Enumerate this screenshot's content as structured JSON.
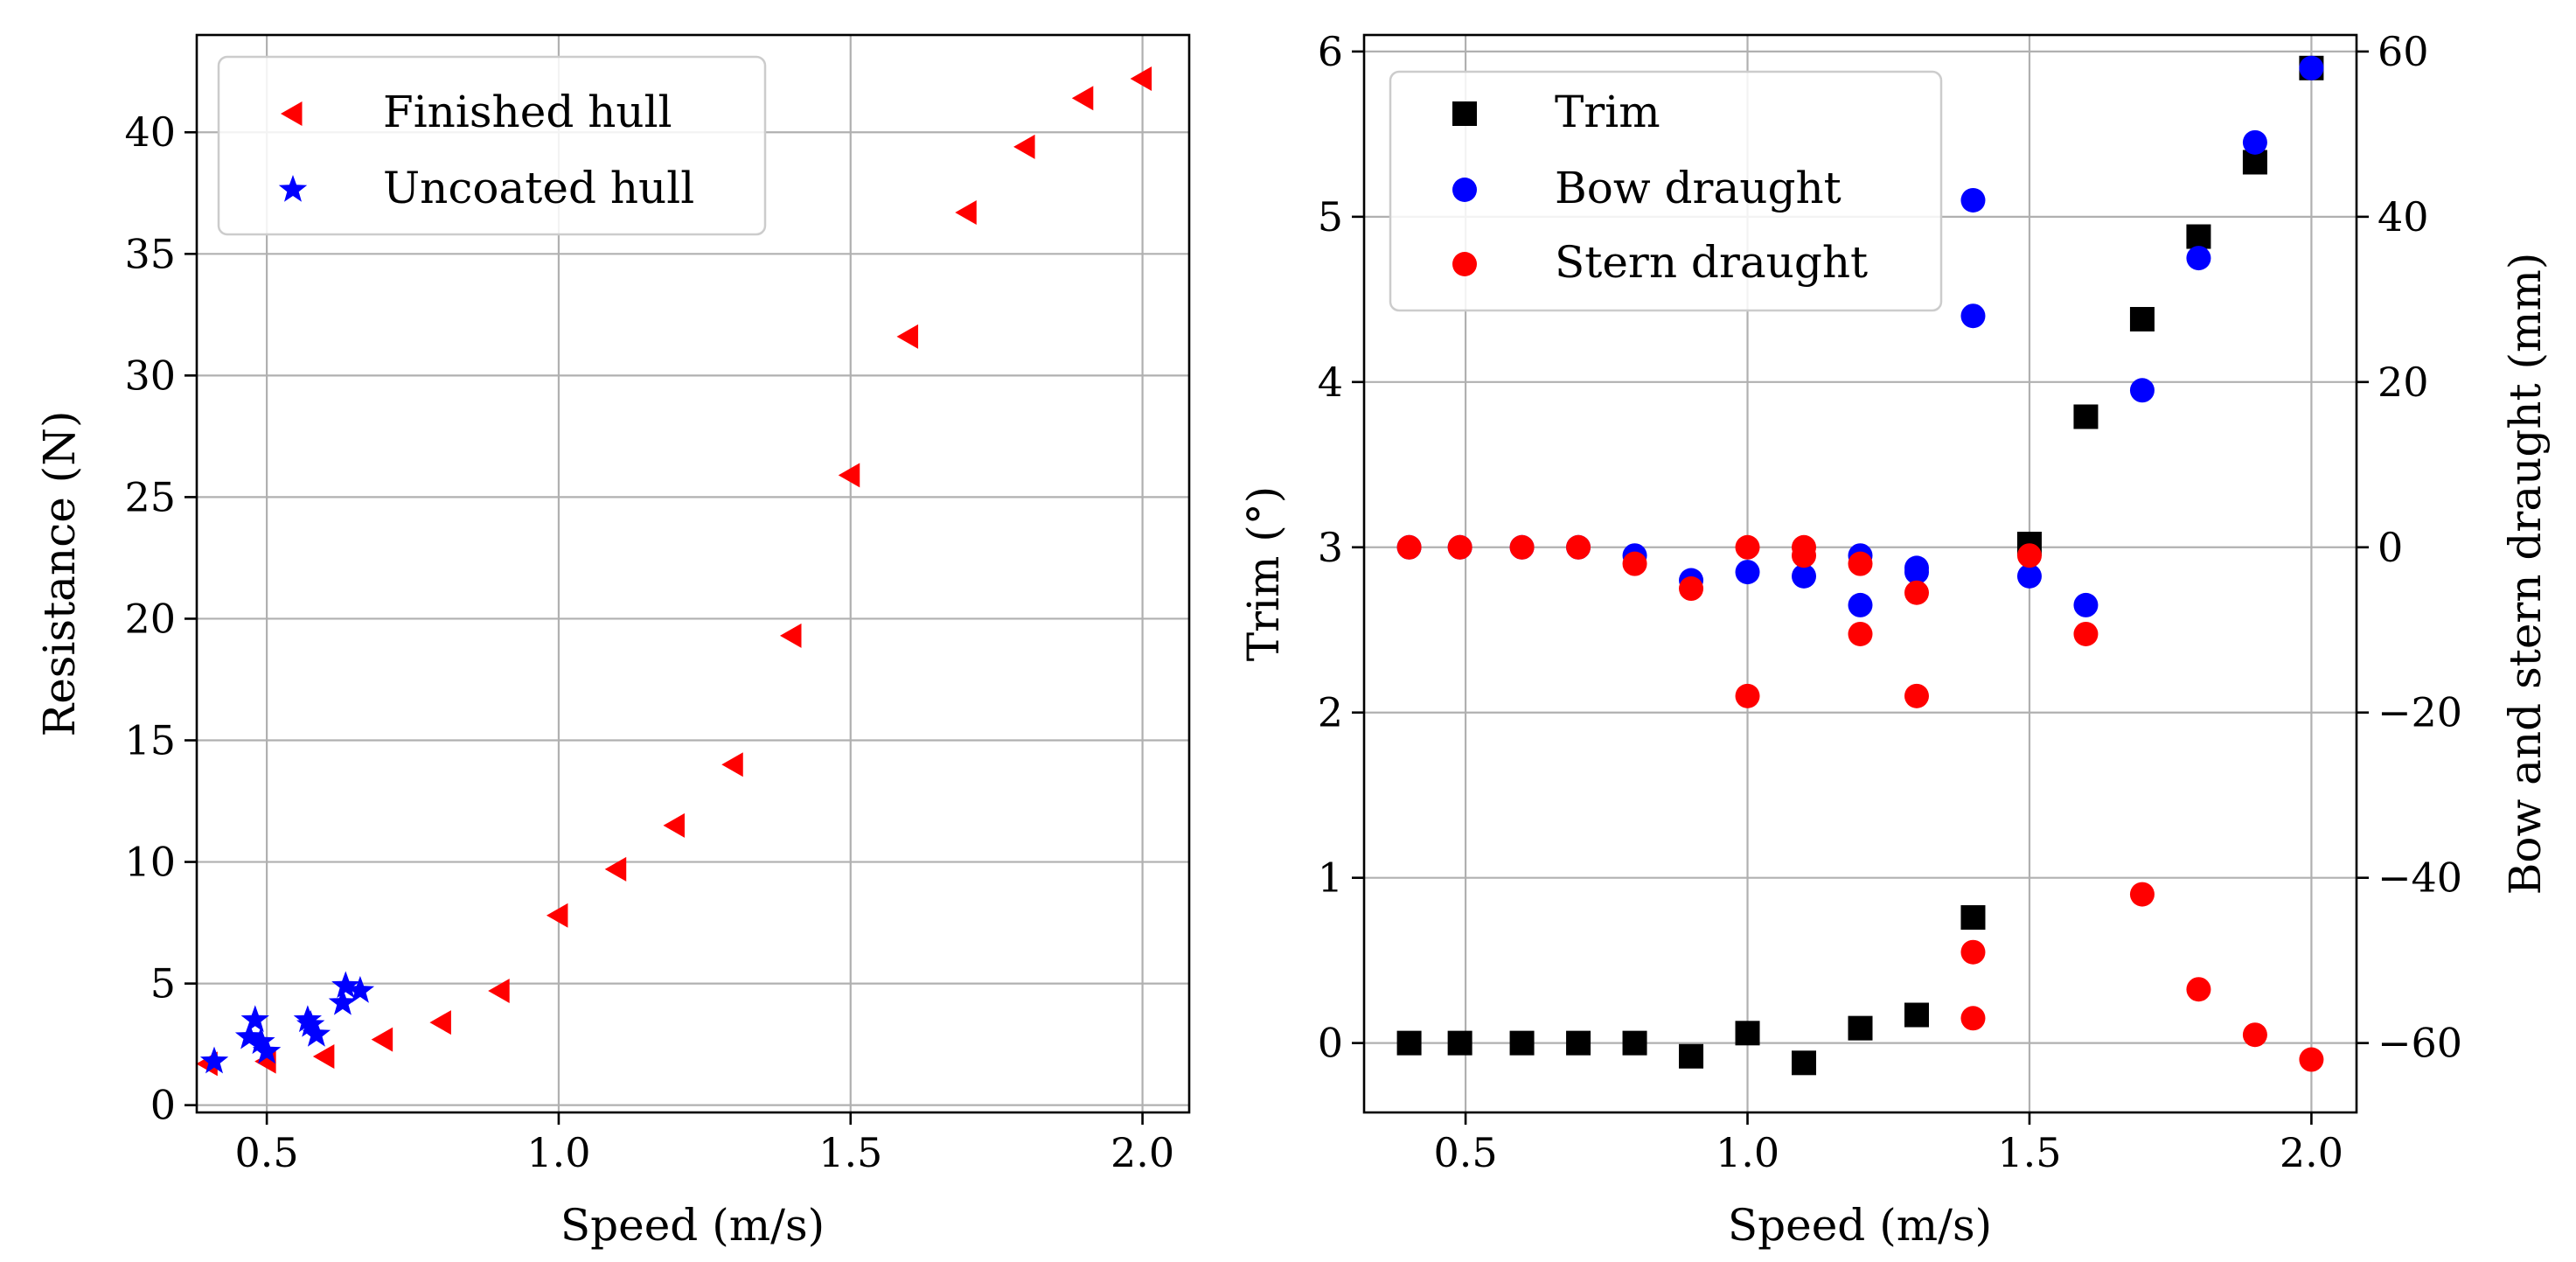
{
  "chart_data": [
    {
      "type": "scatter",
      "xlabel": "Speed (m/s)",
      "ylabel": "Resistance (N)",
      "xlim": [
        0.38,
        2.08
      ],
      "ylim": [
        -0.3,
        44.0
      ],
      "xticks": [
        0.5,
        1.0,
        1.5,
        2.0
      ],
      "xtick_labels": [
        "0.5",
        "1.0",
        "1.5",
        "2.0"
      ],
      "yticks": [
        0,
        5,
        10,
        15,
        20,
        25,
        30,
        35,
        40
      ],
      "ytick_labels": [
        "0",
        "5",
        "10",
        "15",
        "20",
        "25",
        "30",
        "35",
        "40"
      ],
      "grid": true,
      "legend_position": "upper-left",
      "series": [
        {
          "name": "Finished hull",
          "marker": "triangle-left",
          "color": "#ff0000",
          "x": [
            0.4,
            0.5,
            0.6,
            0.7,
            0.8,
            0.9,
            1.0,
            1.1,
            1.2,
            1.3,
            1.4,
            1.5,
            1.6,
            1.7,
            1.8,
            1.9,
            2.0
          ],
          "y": [
            1.7,
            1.8,
            2.0,
            2.7,
            3.4,
            4.7,
            7.8,
            9.7,
            11.5,
            14.0,
            19.3,
            25.9,
            31.6,
            36.7,
            39.4,
            41.4,
            42.2
          ]
        },
        {
          "name": "Uncoated hull",
          "marker": "star",
          "color": "#0000ff",
          "x": [
            0.41,
            0.47,
            0.48,
            0.49,
            0.5,
            0.57,
            0.575,
            0.585,
            0.63,
            0.635,
            0.66
          ],
          "y": [
            1.8,
            2.8,
            3.5,
            2.6,
            2.2,
            3.5,
            3.3,
            2.9,
            4.2,
            4.9,
            4.7
          ]
        }
      ]
    },
    {
      "type": "scatter",
      "xlabel": "Speed (m/s)",
      "ylabel": "Trim (°)",
      "ylabel_right": "Bow and stern draught (mm)",
      "xlim": [
        0.32,
        2.08
      ],
      "ylim": [
        -0.42,
        6.1
      ],
      "ylim_right": [
        -68.4,
        62.0
      ],
      "xticks": [
        0.5,
        1.0,
        1.5,
        2.0
      ],
      "xtick_labels": [
        "0.5",
        "1.0",
        "1.5",
        "2.0"
      ],
      "yticks": [
        0,
        1,
        2,
        3,
        4,
        5,
        6
      ],
      "ytick_labels": [
        "0",
        "1",
        "2",
        "3",
        "4",
        "5",
        "6"
      ],
      "yticks_right": [
        -60,
        -40,
        -20,
        0,
        20,
        40,
        60
      ],
      "ytick_labels_right": [
        "−60",
        "−40",
        "−20",
        "0",
        "20",
        "40",
        "60"
      ],
      "grid": true,
      "legend_position": "upper-left",
      "series": [
        {
          "name": "Trim",
          "marker": "square",
          "color": "#000000",
          "axis": "left",
          "x": [
            0.4,
            0.49,
            0.6,
            0.7,
            0.8,
            0.9,
            1.0,
            1.1,
            1.2,
            1.3,
            1.4,
            1.5,
            1.6,
            1.7,
            1.8,
            1.9,
            2.0
          ],
          "y": [
            0.0,
            0.0,
            0.0,
            0.0,
            0.0,
            -0.08,
            0.06,
            -0.12,
            0.09,
            0.17,
            0.76,
            3.02,
            3.79,
            4.38,
            4.88,
            5.33,
            5.9
          ]
        },
        {
          "name": "Bow draught",
          "marker": "circle",
          "color": "#0000ff",
          "axis": "right",
          "x": [
            0.4,
            0.49,
            0.6,
            0.7,
            0.8,
            0.9,
            1.0,
            1.1,
            1.2,
            1.2,
            1.3,
            1.3,
            1.4,
            1.4,
            1.5,
            1.6,
            1.7,
            1.8,
            1.9,
            2.0
          ],
          "y": [
            0,
            0,
            0,
            0,
            -1,
            -4,
            -3,
            -3.5,
            -1,
            -7,
            -2.5,
            -3,
            42,
            28,
            -3.5,
            -7,
            19,
            35,
            49,
            58
          ]
        },
        {
          "name": "Stern draught",
          "marker": "circle",
          "color": "#ff0000",
          "axis": "right",
          "x": [
            0.4,
            0.49,
            0.6,
            0.7,
            0.8,
            0.9,
            1.0,
            1.0,
            1.1,
            1.1,
            1.2,
            1.2,
            1.3,
            1.3,
            1.4,
            1.4,
            1.5,
            1.6,
            1.7,
            1.8,
            1.9,
            2.0
          ],
          "y": [
            0,
            0,
            0,
            0,
            -2,
            -5,
            0,
            -18,
            0,
            -1,
            -2,
            -10.5,
            -5.5,
            -18,
            -49,
            -57,
            -1,
            -10.5,
            -42,
            -53.5,
            -59,
            -62
          ]
        }
      ]
    }
  ]
}
